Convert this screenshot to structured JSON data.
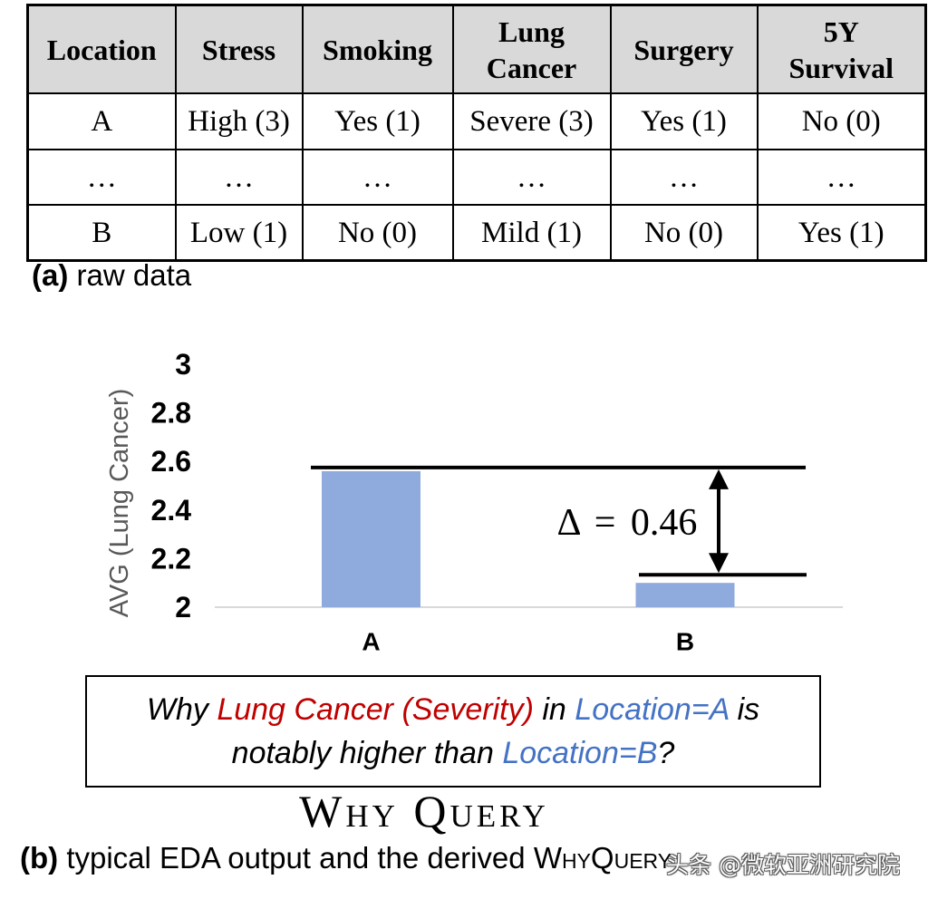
{
  "table": {
    "headers": [
      "Location",
      "Stress",
      "Smoking",
      "Lung Cancer",
      "Surgery",
      "5Y Survival"
    ],
    "rows": [
      [
        "A",
        "High (3)",
        "Yes (1)",
        "Severe (3)",
        "Yes (1)",
        "No (0)"
      ],
      [
        "…",
        "…",
        "…",
        "…",
        "…",
        "…"
      ],
      [
        "B",
        "Low (1)",
        "No (0)",
        "Mild (1)",
        "No (0)",
        "Yes (1)"
      ]
    ]
  },
  "caption_a": {
    "label": "(a)",
    "text": "raw data"
  },
  "chart_data": {
    "type": "bar",
    "ylabel": "AVG (Lung Cancer)",
    "categories": [
      "A",
      "B"
    ],
    "values": [
      2.56,
      2.1
    ],
    "ylim": [
      2,
      3
    ],
    "yticks": [
      3,
      2.8,
      2.6,
      2.4,
      2.2,
      2
    ],
    "grid": false,
    "annotation": {
      "delta": 0.46,
      "text": "Δ = 0.46"
    }
  },
  "query": {
    "why": "Why",
    "measure": "Lung Cancer (Severity)",
    "in": "in",
    "location_a": "Location=A",
    "is": "is",
    "comparison": "notably higher than",
    "location_b": "Location=B",
    "question_mark": "?"
  },
  "heading": "Why Query",
  "caption_b": {
    "label": "(b)",
    "text": "typical EDA output and the derived",
    "term": "WhyQuery"
  },
  "watermark": {
    "text": "头条 @微软亚洲研究院"
  },
  "colors": {
    "header_bg": "#d9d9d9",
    "bar": "#8faadc",
    "measure": "#c00000",
    "location": "#4472c4",
    "axis_title": "#595959",
    "baseline": "#d9d9d9"
  }
}
